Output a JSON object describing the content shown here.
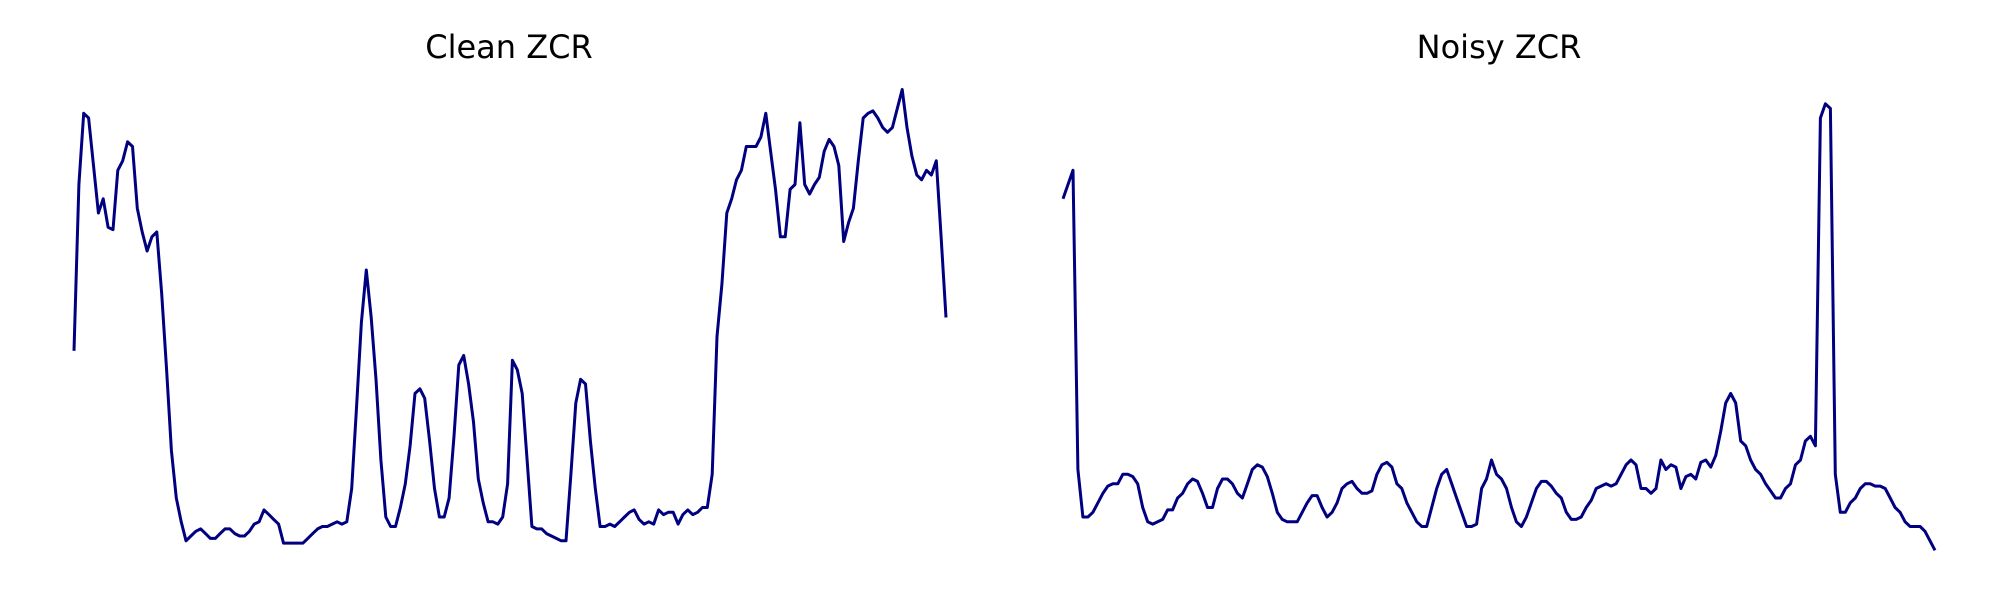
{
  "chart_data": [
    {
      "type": "line",
      "title": "Clean ZCR",
      "xlabel": "",
      "ylabel": "",
      "axes": "off",
      "grid": false,
      "line_color": "#000080",
      "ylim": [
        0,
        1
      ],
      "y": [
        0.43,
        0.78,
        0.93,
        0.92,
        0.82,
        0.72,
        0.75,
        0.69,
        0.685,
        0.81,
        0.83,
        0.87,
        0.86,
        0.73,
        0.68,
        0.64,
        0.67,
        0.68,
        0.55,
        0.39,
        0.22,
        0.12,
        0.07,
        0.03,
        0.04,
        0.05,
        0.055,
        0.045,
        0.035,
        0.035,
        0.045,
        0.055,
        0.055,
        0.045,
        0.04,
        0.04,
        0.05,
        0.065,
        0.07,
        0.095,
        0.085,
        0.075,
        0.065,
        0.025,
        0.025,
        0.025,
        0.025,
        0.025,
        0.035,
        0.045,
        0.055,
        0.06,
        0.06,
        0.065,
        0.07,
        0.065,
        0.07,
        0.14,
        0.31,
        0.49,
        0.6,
        0.5,
        0.37,
        0.2,
        0.08,
        0.06,
        0.06,
        0.1,
        0.15,
        0.23,
        0.34,
        0.35,
        0.33,
        0.24,
        0.14,
        0.08,
        0.08,
        0.12,
        0.25,
        0.4,
        0.42,
        0.36,
        0.28,
        0.16,
        0.11,
        0.07,
        0.07,
        0.065,
        0.08,
        0.15,
        0.41,
        0.39,
        0.34,
        0.2,
        0.06,
        0.055,
        0.055,
        0.045,
        0.04,
        0.035,
        0.03,
        0.03,
        0.17,
        0.32,
        0.37,
        0.36,
        0.24,
        0.14,
        0.06,
        0.06,
        0.065,
        0.06,
        0.07,
        0.08,
        0.09,
        0.095,
        0.075,
        0.065,
        0.07,
        0.065,
        0.095,
        0.085,
        0.09,
        0.09,
        0.065,
        0.085,
        0.095,
        0.085,
        0.09,
        0.1,
        0.1,
        0.17,
        0.46,
        0.57,
        0.72,
        0.75,
        0.79,
        0.81,
        0.86,
        0.86,
        0.86,
        0.88,
        0.93,
        0.85,
        0.77,
        0.67,
        0.67,
        0.77,
        0.78,
        0.91,
        0.78,
        0.76,
        0.78,
        0.795,
        0.85,
        0.875,
        0.86,
        0.82,
        0.66,
        0.7,
        0.73,
        0.83,
        0.92,
        0.93,
        0.935,
        0.92,
        0.9,
        0.89,
        0.9,
        0.94,
        0.98,
        0.9,
        0.84,
        0.8,
        0.79,
        0.81,
        0.8,
        0.83,
        0.67,
        0.5
      ]
    },
    {
      "type": "line",
      "title": "Noisy ZCR",
      "xlabel": "",
      "ylabel": "",
      "axes": "off",
      "grid": false,
      "line_color": "#000080",
      "ylim": [
        0,
        1
      ],
      "y": [
        0.75,
        0.78,
        0.81,
        0.18,
        0.08,
        0.08,
        0.09,
        0.11,
        0.13,
        0.145,
        0.15,
        0.15,
        0.17,
        0.17,
        0.165,
        0.15,
        0.1,
        0.07,
        0.065,
        0.07,
        0.075,
        0.095,
        0.095,
        0.12,
        0.13,
        0.15,
        0.16,
        0.155,
        0.13,
        0.1,
        0.1,
        0.14,
        0.16,
        0.16,
        0.15,
        0.13,
        0.12,
        0.15,
        0.18,
        0.19,
        0.185,
        0.165,
        0.13,
        0.09,
        0.075,
        0.07,
        0.07,
        0.07,
        0.09,
        0.11,
        0.125,
        0.125,
        0.1,
        0.08,
        0.09,
        0.11,
        0.14,
        0.15,
        0.155,
        0.14,
        0.13,
        0.13,
        0.135,
        0.17,
        0.19,
        0.195,
        0.185,
        0.15,
        0.14,
        0.11,
        0.09,
        0.07,
        0.06,
        0.06,
        0.1,
        0.14,
        0.17,
        0.18,
        0.15,
        0.12,
        0.09,
        0.06,
        0.06,
        0.065,
        0.14,
        0.16,
        0.2,
        0.17,
        0.16,
        0.14,
        0.1,
        0.07,
        0.06,
        0.08,
        0.11,
        0.14,
        0.155,
        0.155,
        0.145,
        0.13,
        0.12,
        0.09,
        0.075,
        0.075,
        0.08,
        0.1,
        0.115,
        0.14,
        0.145,
        0.15,
        0.145,
        0.15,
        0.17,
        0.19,
        0.2,
        0.19,
        0.14,
        0.14,
        0.13,
        0.14,
        0.2,
        0.18,
        0.19,
        0.185,
        0.14,
        0.165,
        0.17,
        0.16,
        0.195,
        0.2,
        0.185,
        0.21,
        0.26,
        0.32,
        0.34,
        0.32,
        0.24,
        0.23,
        0.2,
        0.18,
        0.17,
        0.15,
        0.135,
        0.12,
        0.12,
        0.14,
        0.15,
        0.19,
        0.2,
        0.24,
        0.25,
        0.23,
        0.92,
        0.95,
        0.94,
        0.17,
        0.09,
        0.09,
        0.11,
        0.12,
        0.14,
        0.15,
        0.15,
        0.145,
        0.145,
        0.14,
        0.12,
        0.1,
        0.09,
        0.07,
        0.06,
        0.06,
        0.06,
        0.05,
        0.03,
        0.01
      ]
    }
  ]
}
